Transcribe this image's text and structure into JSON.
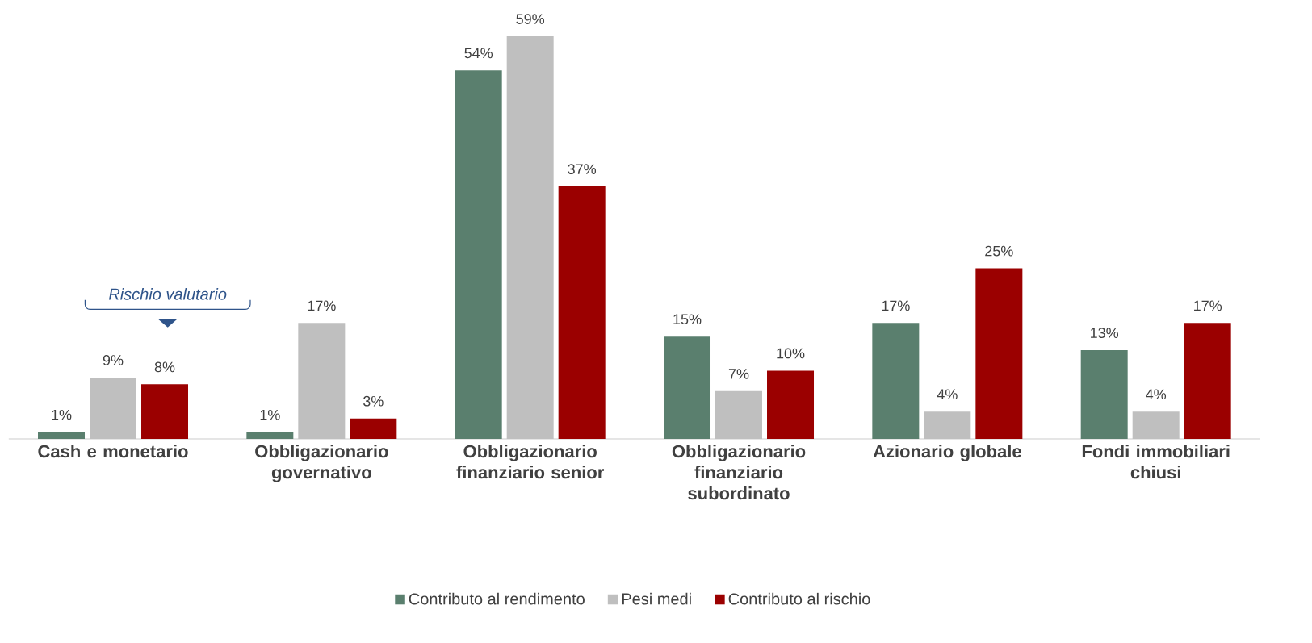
{
  "chart_data": {
    "type": "bar",
    "categories": [
      "Cash e monetario",
      "Obbligazionario governativo",
      "Obbligazionario finanziario senior",
      "Obbligazionario finanziario subordinato",
      "Azionario globale",
      "Fondi immobiliari chiusi"
    ],
    "series": [
      {
        "name": "Contributo al rendimento",
        "color": "#5a7f6e",
        "values": [
          1,
          1,
          54,
          15,
          17,
          13
        ],
        "value_labels": [
          "1%",
          "1%",
          "54%",
          "15%",
          "17%",
          "13%"
        ]
      },
      {
        "name": "Pesi medi",
        "color": "#bfbfbf",
        "values": [
          9,
          17,
          59,
          7,
          4,
          4
        ],
        "value_labels": [
          "9%",
          "17%",
          "59%",
          "7%",
          "4%",
          "4%"
        ]
      },
      {
        "name": "Contributo al rischio",
        "color": "#9b0000",
        "values": [
          8,
          3,
          37,
          10,
          25,
          17
        ],
        "value_labels": [
          "8%",
          "3%",
          "37%",
          "10%",
          "25%",
          "17%"
        ]
      }
    ],
    "annotations": [
      "Rischio valutario"
    ],
    "legend": "bottom"
  }
}
